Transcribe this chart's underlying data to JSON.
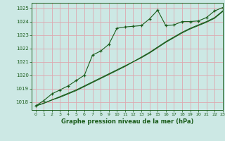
{
  "title": "Graphe pression niveau de la mer (hPa)",
  "background_color": "#cce8e4",
  "grid_color": "#dda8b0",
  "line_color": "#1a5c1a",
  "xlim": [
    -0.5,
    23
  ],
  "ylim": [
    1017.4,
    1025.4
  ],
  "yticks": [
    1018,
    1019,
    1020,
    1021,
    1022,
    1023,
    1024,
    1025
  ],
  "xticks": [
    0,
    1,
    2,
    3,
    4,
    5,
    6,
    7,
    8,
    9,
    10,
    11,
    12,
    13,
    14,
    15,
    16,
    17,
    18,
    19,
    20,
    21,
    22,
    23
  ],
  "main_x": [
    0,
    1,
    2,
    3,
    4,
    5,
    6,
    7,
    8,
    9,
    10,
    11,
    12,
    13,
    14,
    15,
    16,
    17,
    18,
    19,
    20,
    21,
    22,
    23
  ],
  "main_y": [
    1017.7,
    1018.1,
    1018.6,
    1018.9,
    1019.2,
    1019.6,
    1020.0,
    1021.5,
    1021.8,
    1022.3,
    1023.5,
    1023.6,
    1023.65,
    1023.7,
    1024.2,
    1024.85,
    1023.7,
    1023.75,
    1024.0,
    1024.0,
    1024.05,
    1024.3,
    1024.8,
    1025.05
  ],
  "smooth1_x": [
    0,
    1,
    2,
    3,
    4,
    5,
    6,
    7,
    8,
    9,
    10,
    11,
    12,
    13,
    14,
    15,
    16,
    17,
    18,
    19,
    20,
    21,
    22,
    23
  ],
  "smooth1_y": [
    1017.7,
    1017.9,
    1018.15,
    1018.4,
    1018.65,
    1018.9,
    1019.2,
    1019.5,
    1019.8,
    1020.1,
    1020.4,
    1020.7,
    1021.0,
    1021.35,
    1021.7,
    1022.1,
    1022.5,
    1022.85,
    1023.2,
    1023.5,
    1023.75,
    1024.0,
    1024.3,
    1024.8
  ],
  "smooth2_x": [
    0,
    1,
    2,
    3,
    4,
    5,
    6,
    7,
    8,
    9,
    10,
    11,
    12,
    13,
    14,
    15,
    16,
    17,
    18,
    19,
    20,
    21,
    22,
    23
  ],
  "smooth2_y": [
    1017.7,
    1017.9,
    1018.15,
    1018.35,
    1018.6,
    1018.85,
    1019.15,
    1019.45,
    1019.75,
    1020.05,
    1020.35,
    1020.65,
    1021.0,
    1021.3,
    1021.65,
    1022.05,
    1022.45,
    1022.8,
    1023.15,
    1023.45,
    1023.7,
    1023.95,
    1024.25,
    1024.75
  ]
}
